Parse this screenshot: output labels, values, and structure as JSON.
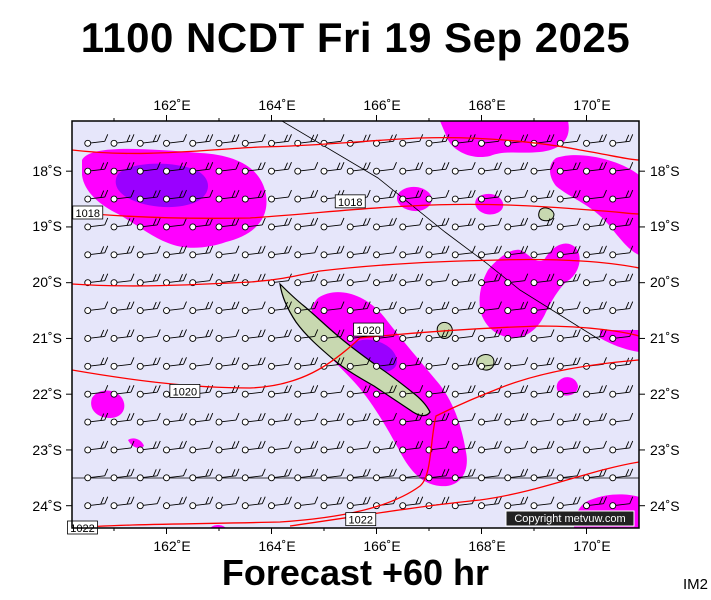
{
  "header": {
    "title": "1100 NCDT Fri 19 Sep 2025"
  },
  "footer": {
    "forecast": "Forecast +60 hr",
    "code": "IM2"
  },
  "copyright": "Copyright metvuw.com",
  "axes": {
    "lon_labels": [
      "162˚E",
      "164˚E",
      "166˚E",
      "168˚E",
      "170˚E"
    ],
    "lat_labels": [
      "18˚S",
      "19˚S",
      "20˚S",
      "21˚S",
      "22˚S",
      "23˚S",
      "24˚S"
    ]
  },
  "map": {
    "lon_range": [
      160.2,
      171.0
    ],
    "lat_range": [
      -17.1,
      -24.4
    ],
    "ocean_color": "#e6e6fa",
    "rain_light_color": "#ff00ff",
    "rain_heavy_color": "#9a00ff",
    "isobar_color": "#ff0000",
    "land_color": "#c8d8b0",
    "isobar_labels": [
      {
        "text": "1018",
        "lon": 160.5,
        "lat": -18.75
      },
      {
        "text": "1018",
        "lon": 165.5,
        "lat": -18.55
      },
      {
        "text": "1020",
        "lon": 165.85,
        "lat": -20.85
      },
      {
        "text": "1020",
        "lon": 162.35,
        "lat": -21.95
      },
      {
        "text": "1022",
        "lon": 165.7,
        "lat": -24.25
      },
      {
        "text": "1022",
        "lon": 160.4,
        "lat": -24.4
      }
    ]
  }
}
